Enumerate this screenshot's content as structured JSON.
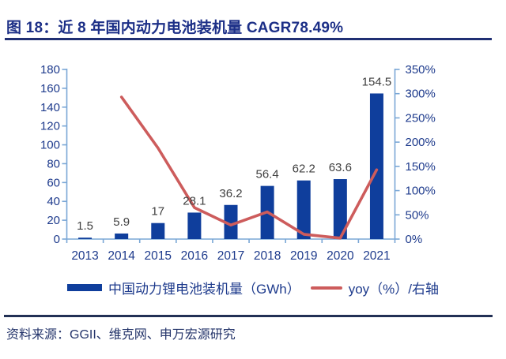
{
  "header": {
    "title": "图 18：近 8 年国内动力电池装机量 CAGR78.49%"
  },
  "chart_data": {
    "type": "bar",
    "subtype": "combo-bar-line-dual-axis",
    "title": "图 18：近 8 年国内动力电池装机量 CAGR78.49%",
    "categories": [
      "2013",
      "2014",
      "2015",
      "2016",
      "2017",
      "2018",
      "2019",
      "2020",
      "2021"
    ],
    "series": [
      {
        "name": "中国动力锂电池装机量（GWh）",
        "type": "bar",
        "axis": "left",
        "values": [
          1.5,
          5.9,
          17,
          28.1,
          36.2,
          56.4,
          62.2,
          63.6,
          154.5
        ]
      },
      {
        "name": "yoy（%）/右轴",
        "type": "line",
        "axis": "right",
        "values": [
          null,
          293,
          188,
          65,
          29,
          56,
          10,
          2,
          143
        ]
      }
    ],
    "bar_value_labels": [
      "1.5",
      "5.9",
      "17",
      "28.1",
      "36.2",
      "56.4",
      "62.2",
      "63.6",
      "154.5"
    ],
    "left_axis": {
      "min": 0,
      "max": 180,
      "step": 20,
      "tick_labels": [
        "0",
        "20",
        "40",
        "60",
        "80",
        "100",
        "120",
        "140",
        "160",
        "180"
      ]
    },
    "right_axis": {
      "min": 0,
      "max": 350,
      "step": 50,
      "suffix": "%",
      "tick_labels": [
        "0%",
        "50%",
        "100%",
        "150%",
        "200%",
        "250%",
        "300%",
        "350%"
      ]
    },
    "grid": false,
    "legend_position": "bottom"
  },
  "legend": {
    "items": [
      {
        "label": "中国动力锂电池装机量（GWh）",
        "swatch": "bar",
        "color": "#0f3e9c"
      },
      {
        "label": "yoy（%）/右轴",
        "swatch": "line",
        "color": "#cd5c5c"
      }
    ]
  },
  "footer": {
    "source": "资料来源：GGII、维克网、申万宏源研究"
  },
  "colors": {
    "title": "#1c2f87",
    "bar": "#0f3e9c",
    "line": "#cd5c5c",
    "axis_line": "#7aa7d6",
    "axis_text": "#1d3a8c",
    "data_label": "#3f3f3f",
    "title_underline": "#202f73",
    "footer_divider": "#223055",
    "background": "#ffffff"
  }
}
